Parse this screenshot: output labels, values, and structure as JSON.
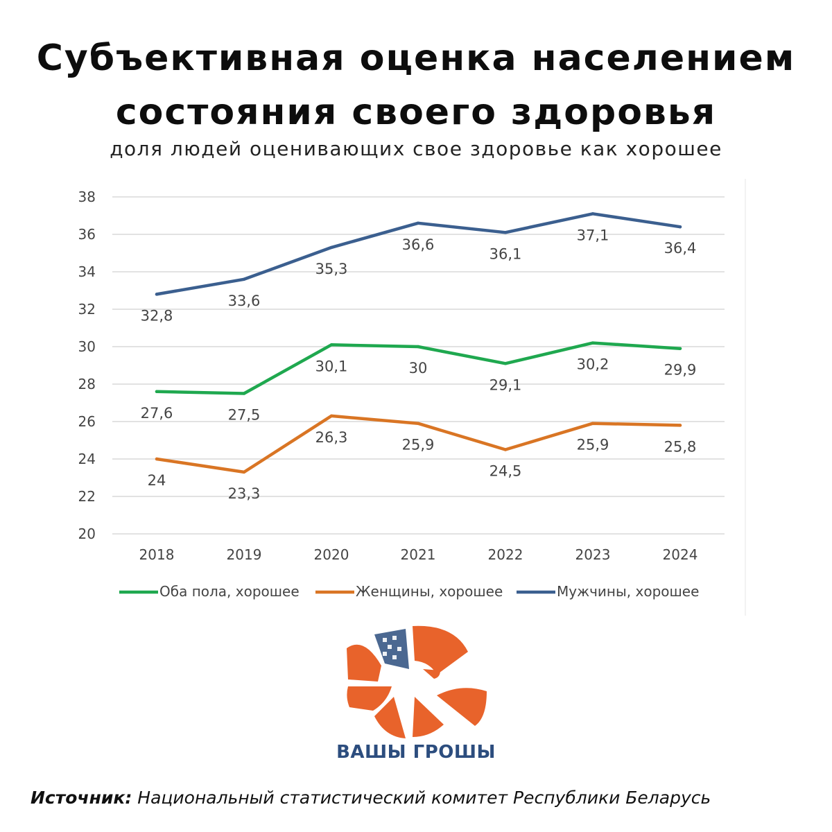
{
  "header": {
    "title_line1": "Субъективная оценка населением",
    "title_line2": "состояния своего здоровья",
    "subtitle": "доля людей оценивающих свое здоровье как хорошее"
  },
  "chart_data": {
    "type": "line",
    "x": [
      "2018",
      "2019",
      "2020",
      "2021",
      "2022",
      "2023",
      "2024"
    ],
    "ylim": [
      20,
      38
    ],
    "yticks": [
      "20",
      "22",
      "24",
      "26",
      "28",
      "30",
      "32",
      "34",
      "36",
      "38"
    ],
    "grid": true,
    "legend_position": "bottom",
    "series": [
      {
        "name": "Оба пола, хорошее",
        "color": "#1fa84f",
        "values": [
          27.6,
          27.5,
          30.1,
          30.0,
          29.1,
          30.2,
          29.9
        ],
        "labels": [
          "27,6",
          "27,5",
          "30,1",
          "30",
          "29,1",
          "30,2",
          "29,9"
        ]
      },
      {
        "name": "Женщины, хорошее",
        "color": "#d97524",
        "values": [
          24.0,
          23.3,
          26.3,
          25.9,
          24.5,
          25.9,
          25.8
        ],
        "labels": [
          "24",
          "23,3",
          "26,3",
          "25,9",
          "24,5",
          "25,9",
          "25,8"
        ]
      },
      {
        "name": "Мужчины, хорошее",
        "color": "#3b5f8f",
        "values": [
          32.8,
          33.6,
          35.3,
          36.6,
          36.1,
          37.1,
          36.4
        ],
        "labels": [
          "32,8",
          "33,6",
          "35,3",
          "36,6",
          "36,1",
          "37,1",
          "36,4"
        ]
      }
    ]
  },
  "logo": {
    "text": "ВАШЫ ГРОШЫ",
    "color_orange": "#e8632b",
    "color_blue": "#2c4d7e"
  },
  "source": {
    "label": "Источник:",
    "text": " Национальный статистический комитет Республики Беларусь"
  }
}
